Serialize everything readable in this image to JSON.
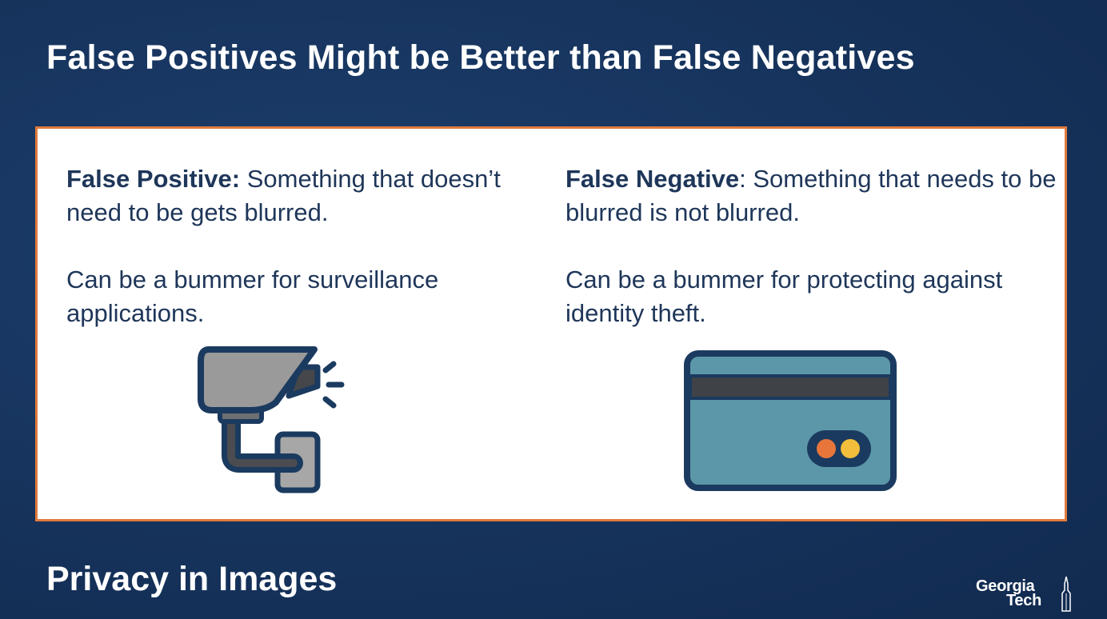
{
  "slide": {
    "title": "False Positives Might be Better than False Negatives",
    "footer_title": "Privacy in Images"
  },
  "false_positive": {
    "term": "False Positive:",
    "definition": " Something that doesn’t need to be gets blurred.",
    "consequence": "Can be a bummer for surveillance applications.",
    "icon": "security-camera-icon"
  },
  "false_negative": {
    "term": "False Negative",
    "definition": ": Something that needs to be blurred is not blurred.",
    "consequence": "Can be a bummer for protecting against identity theft.",
    "icon": "credit-card-icon"
  },
  "logo": {
    "line1": "Georgia",
    "line2": "Tech"
  },
  "colors": {
    "background": "#17355f",
    "accent_border": "#e07a3c",
    "text": "#1e3659",
    "icon_outline": "#1b3a5f",
    "camera_body": "#9e9e9e",
    "card_fill": "#5b97a8",
    "card_stripe": "#3f4246",
    "chip_orange": "#e8763a",
    "chip_yellow": "#f2be3b"
  }
}
